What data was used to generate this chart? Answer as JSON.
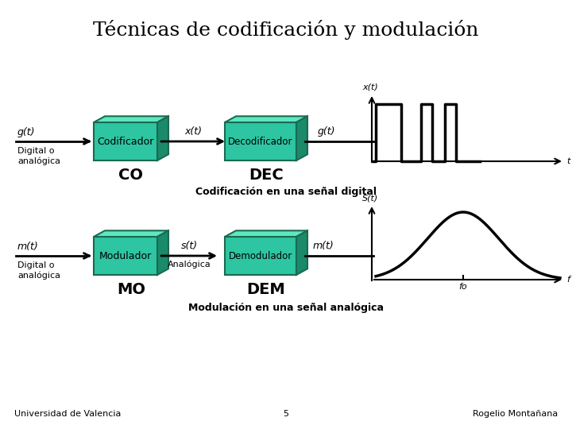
{
  "title": "Técnicas de codificación y modulación",
  "bg_color": "#ffffff",
  "box_face": "#2dc5a2",
  "box_top": "#5de8c0",
  "box_side": "#1a8a6a",
  "box_edge": "#1a6a50",
  "bottom_left": "Universidad de Valencia",
  "bottom_center": "5",
  "bottom_right": "Rogelio Montañana",
  "row1": {
    "label_in": "g(t)",
    "label_sub_in": "Digital o\nanalógica",
    "box1_label": "Codificador",
    "box1_abbr": "CO",
    "mid_label": "x(t)",
    "box2_label": "Decodificador",
    "box2_abbr": "DEC",
    "label_out": "g(t)",
    "caption": "Codificación en una señal digital",
    "gy_label": "x(t)",
    "gx_label": "t"
  },
  "row2": {
    "label_in": "m(t)",
    "label_sub_in": "Digital o\nanalógica",
    "box1_label": "Modulador",
    "box1_abbr": "MO",
    "mid_label": "s(t)",
    "mid_sub": "Analógica",
    "box2_label": "Demodulador",
    "box2_abbr": "DEM",
    "label_out": "m(t)",
    "caption": "Modulación en una señal analógica",
    "gy_label": "S(t)",
    "gx_label": "f",
    "fo_label": "fo"
  }
}
